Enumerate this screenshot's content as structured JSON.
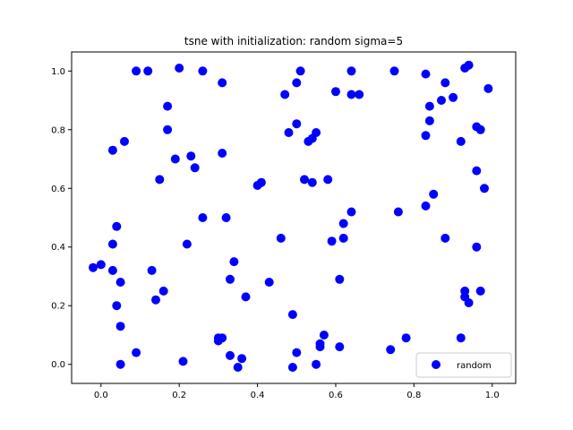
{
  "chart_data": {
    "type": "scatter",
    "title": "tsne with initialization: random sigma=5",
    "xlabel": "",
    "ylabel": "",
    "xlim": [
      -0.075,
      1.06
    ],
    "ylim": [
      -0.065,
      1.065
    ],
    "xticks": [
      "0.0",
      "0.2",
      "0.4",
      "0.6",
      "0.8",
      "1.0"
    ],
    "yticks": [
      "0.0",
      "0.2",
      "0.4",
      "0.6",
      "0.8",
      "1.0"
    ],
    "grid": false,
    "legend_position": "lower-right",
    "series": [
      {
        "name": "random",
        "color": "#0000ff",
        "marker": "circle",
        "points": [
          [
            0.09,
            1.0
          ],
          [
            0.12,
            1.0
          ],
          [
            0.2,
            1.01
          ],
          [
            0.26,
            1.0
          ],
          [
            0.31,
            0.96
          ],
          [
            0.51,
            1.0
          ],
          [
            0.5,
            0.96
          ],
          [
            0.64,
            1.0
          ],
          [
            0.75,
            1.0
          ],
          [
            0.83,
            0.99
          ],
          [
            0.93,
            1.01
          ],
          [
            0.94,
            1.02
          ],
          [
            0.99,
            0.94
          ],
          [
            0.47,
            0.92
          ],
          [
            0.6,
            0.93
          ],
          [
            0.64,
            0.92
          ],
          [
            0.66,
            0.92
          ],
          [
            0.87,
            0.9
          ],
          [
            0.9,
            0.91
          ],
          [
            0.88,
            0.96
          ],
          [
            0.84,
            0.88
          ],
          [
            0.17,
            0.88
          ],
          [
            0.17,
            0.8
          ],
          [
            0.06,
            0.76
          ],
          [
            0.03,
            0.73
          ],
          [
            0.19,
            0.7
          ],
          [
            0.23,
            0.71
          ],
          [
            0.24,
            0.67
          ],
          [
            0.31,
            0.72
          ],
          [
            0.5,
            0.82
          ],
          [
            0.48,
            0.79
          ],
          [
            0.53,
            0.76
          ],
          [
            0.54,
            0.77
          ],
          [
            0.55,
            0.79
          ],
          [
            0.84,
            0.83
          ],
          [
            0.83,
            0.78
          ],
          [
            0.92,
            0.76
          ],
          [
            0.96,
            0.81
          ],
          [
            0.97,
            0.8
          ],
          [
            0.96,
            0.66
          ],
          [
            0.98,
            0.6
          ],
          [
            0.15,
            0.63
          ],
          [
            0.4,
            0.61
          ],
          [
            0.41,
            0.62
          ],
          [
            0.52,
            0.63
          ],
          [
            0.54,
            0.62
          ],
          [
            0.58,
            0.63
          ],
          [
            0.85,
            0.58
          ],
          [
            0.83,
            0.54
          ],
          [
            0.76,
            0.52
          ],
          [
            0.26,
            0.5
          ],
          [
            0.32,
            0.5
          ],
          [
            0.64,
            0.52
          ],
          [
            0.62,
            0.48
          ],
          [
            0.04,
            0.47
          ],
          [
            0.03,
            0.41
          ],
          [
            0.22,
            0.41
          ],
          [
            0.46,
            0.43
          ],
          [
            0.59,
            0.42
          ],
          [
            0.62,
            0.43
          ],
          [
            0.88,
            0.43
          ],
          [
            0.96,
            0.4
          ],
          [
            0.0,
            0.34
          ],
          [
            -0.02,
            0.33
          ],
          [
            0.03,
            0.32
          ],
          [
            0.13,
            0.32
          ],
          [
            0.34,
            0.35
          ],
          [
            0.33,
            0.29
          ],
          [
            0.43,
            0.28
          ],
          [
            0.61,
            0.29
          ],
          [
            0.05,
            0.28
          ],
          [
            0.16,
            0.25
          ],
          [
            0.14,
            0.22
          ],
          [
            0.37,
            0.23
          ],
          [
            0.93,
            0.25
          ],
          [
            0.97,
            0.25
          ],
          [
            0.93,
            0.23
          ],
          [
            0.94,
            0.21
          ],
          [
            0.04,
            0.2
          ],
          [
            0.49,
            0.17
          ],
          [
            0.05,
            0.13
          ],
          [
            0.57,
            0.1
          ],
          [
            0.3,
            0.09
          ],
          [
            0.31,
            0.09
          ],
          [
            0.3,
            0.08
          ],
          [
            0.78,
            0.09
          ],
          [
            0.92,
            0.09
          ],
          [
            0.56,
            0.07
          ],
          [
            0.56,
            0.06
          ],
          [
            0.61,
            0.06
          ],
          [
            0.74,
            0.05
          ],
          [
            0.5,
            0.04
          ],
          [
            0.09,
            0.04
          ],
          [
            0.33,
            0.03
          ],
          [
            0.36,
            0.02
          ],
          [
            0.21,
            0.01
          ],
          [
            0.05,
            0.0
          ],
          [
            0.35,
            -0.01
          ],
          [
            0.55,
            0.0
          ],
          [
            0.49,
            -0.01
          ]
        ]
      }
    ]
  }
}
